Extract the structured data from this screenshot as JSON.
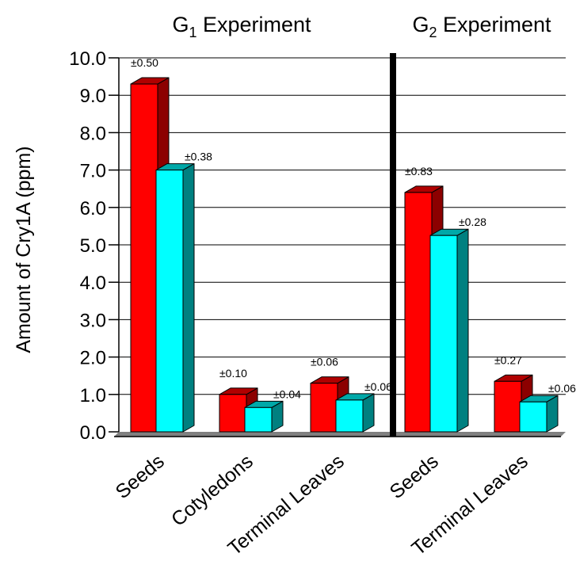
{
  "chart_data": {
    "type": "bar",
    "ylabel": "Amount of Cry1A (ppm)",
    "ylim": [
      0,
      10
    ],
    "yticks": [
      "0.0",
      "1.0",
      "2.0",
      "3.0",
      "4.0",
      "5.0",
      "6.0",
      "7.0",
      "8.0",
      "9.0",
      "10.0"
    ],
    "grid": true,
    "groups": [
      {
        "title_prefix": "G",
        "title_sub": "1",
        "title_suffix": " Experiment",
        "categories": [
          {
            "name": "Seeds",
            "values": [
              9.3,
              7.0
            ],
            "errors": [
              "±0.50",
              "±0.38"
            ]
          },
          {
            "name": "Cotyledons",
            "values": [
              1.0,
              0.65
            ],
            "errors": [
              "±0.10",
              "±0.04"
            ]
          },
          {
            "name": "Terminal Leaves",
            "values": [
              1.3,
              0.85
            ],
            "errors": [
              "±0.06",
              "±0.06"
            ]
          }
        ]
      },
      {
        "title_prefix": "G",
        "title_sub": "2",
        "title_suffix": " Experiment",
        "categories": [
          {
            "name": "Seeds",
            "values": [
              6.4,
              5.25
            ],
            "errors": [
              "±0.83",
              "±0.28"
            ]
          },
          {
            "name": "Terminal Leaves",
            "values": [
              1.35,
              0.8
            ],
            "errors": [
              "±0.27",
              "±0.06"
            ]
          }
        ]
      }
    ],
    "series_colors": {
      "series1": {
        "front": "#ff0000",
        "side": "#8c0000",
        "top": "#b00000"
      },
      "series2": {
        "front": "#00ffff",
        "side": "#008080",
        "top": "#00a8a8"
      }
    },
    "floor_color": "#808080",
    "divider_color": "#000000"
  }
}
